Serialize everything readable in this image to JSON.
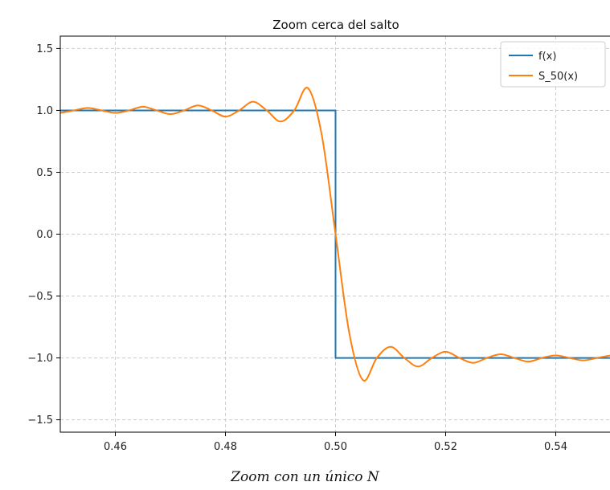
{
  "caption": "Zoom con un único N",
  "chart_data": {
    "type": "line",
    "title": "Zoom cerca del salto",
    "xlabel": "",
    "ylabel": "",
    "xlim": [
      0.45,
      0.55
    ],
    "ylim": [
      -1.6,
      1.6
    ],
    "xticks": [
      0.46,
      0.48,
      0.5,
      0.52,
      0.54
    ],
    "xtick_labels": [
      "0.46",
      "0.48",
      "0.50",
      "0.52",
      "0.54"
    ],
    "yticks": [
      -1.5,
      -1.0,
      -0.5,
      0.0,
      0.5,
      1.0,
      1.5
    ],
    "ytick_labels": [
      "−1.5",
      "−1.0",
      "−0.5",
      "0.0",
      "0.5",
      "1.0",
      "1.5"
    ],
    "grid": true,
    "legend_position": "top-right",
    "series": [
      {
        "name": "f(x)",
        "color": "#1f77b4",
        "x": [
          0.45,
          0.5,
          0.5,
          0.55
        ],
        "y": [
          1.0,
          1.0,
          -1.0,
          -1.0
        ]
      },
      {
        "name": "S_50(x)",
        "color": "#ff7f0e",
        "x": [
          0.45,
          0.4525,
          0.455,
          0.4575,
          0.46,
          0.4625,
          0.465,
          0.4675,
          0.47,
          0.4725,
          0.475,
          0.4775,
          0.48,
          0.4825,
          0.485,
          0.4875,
          0.49,
          0.4925,
          0.495,
          0.4975,
          0.5,
          0.5025,
          0.505,
          0.5075,
          0.51,
          0.5125,
          0.515,
          0.5175,
          0.52,
          0.5225,
          0.525,
          0.5275,
          0.53,
          0.5325,
          0.535,
          0.5375,
          0.54,
          0.5425,
          0.545,
          0.5475,
          0.55
        ],
        "y": [
          0.98,
          1.0,
          1.02,
          1.0,
          0.98,
          1.0,
          1.03,
          1.0,
          0.97,
          1.0,
          1.04,
          1.0,
          0.95,
          1.0,
          1.07,
          1.0,
          0.91,
          1.0,
          1.18,
          0.8,
          0.0,
          -0.8,
          -1.18,
          -1.0,
          -0.91,
          -1.0,
          -1.07,
          -1.0,
          -0.95,
          -1.0,
          -1.04,
          -1.0,
          -0.97,
          -1.0,
          -1.03,
          -1.0,
          -0.98,
          -1.0,
          -1.02,
          -1.0,
          -0.98
        ]
      }
    ]
  }
}
